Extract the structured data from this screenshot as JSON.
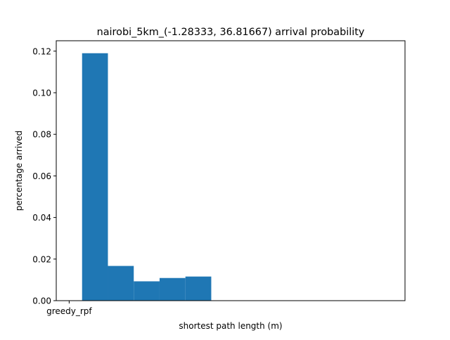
{
  "chart_data": {
    "type": "bar",
    "title": "nairobi_5km_(-1.28333, 36.81667) arrival probability",
    "xlabel": "shortest path length (m)",
    "ylabel": "percentage arrived",
    "x_ticks": [
      {
        "label": "greedy_rpf",
        "value": 0
      }
    ],
    "xlim": [
      -0.5,
      13.0
    ],
    "ylim": [
      0.0,
      0.125
    ],
    "y_ticks": [
      {
        "label": "0.00",
        "value": 0.0
      },
      {
        "label": "0.02",
        "value": 0.02
      },
      {
        "label": "0.04",
        "value": 0.04
      },
      {
        "label": "0.06",
        "value": 0.06
      },
      {
        "label": "0.08",
        "value": 0.08
      },
      {
        "label": "0.10",
        "value": 0.1
      },
      {
        "label": "0.12",
        "value": 0.12
      }
    ],
    "bins": [
      {
        "start": 0.5,
        "end": 1.5,
        "value": 0.119
      },
      {
        "start": 1.5,
        "end": 2.5,
        "value": 0.0167
      },
      {
        "start": 2.5,
        "end": 3.5,
        "value": 0.0093
      },
      {
        "start": 3.5,
        "end": 4.5,
        "value": 0.0109
      },
      {
        "start": 4.5,
        "end": 5.5,
        "value": 0.0116
      }
    ],
    "bar_color": "#1f77b4",
    "grid": false,
    "legend": "none"
  }
}
